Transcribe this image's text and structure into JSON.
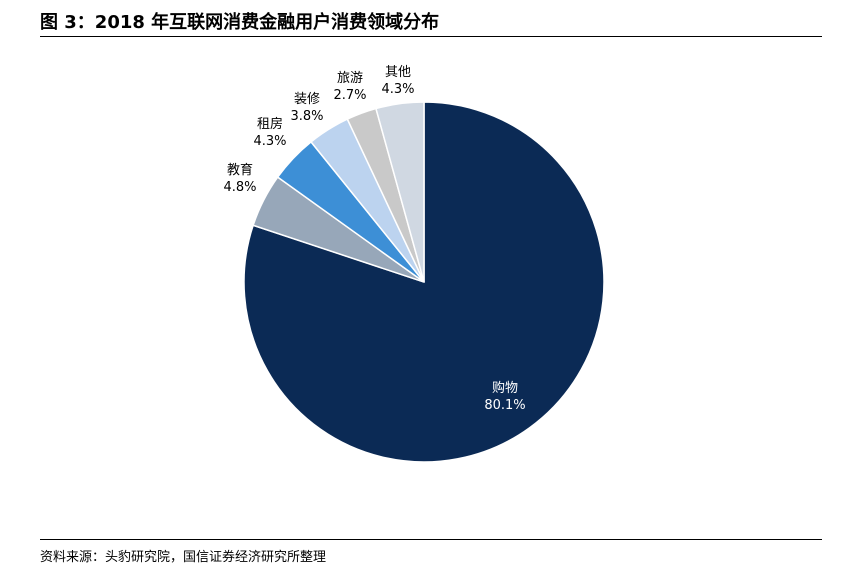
{
  "figure": {
    "title": "图 3：2018 年互联网消费金融用户消费领域分布",
    "source": "资料来源：头豹研究院，国信证券经济研究所整理"
  },
  "chart_data": {
    "type": "pie",
    "title": "",
    "legend": "none",
    "start": "12 o'clock",
    "direction": "clockwise",
    "slices": [
      {
        "label": "购物",
        "value": 80.1,
        "value_label": "80.1%",
        "color": "#0b2a55",
        "label_color": "#ffffff"
      },
      {
        "label": "教育",
        "value": 4.8,
        "value_label": "4.8%",
        "color": "#97a7b9",
        "label_color": "#000000"
      },
      {
        "label": "租房",
        "value": 4.3,
        "value_label": "4.3%",
        "color": "#3d8fd6",
        "label_color": "#000000"
      },
      {
        "label": "装修",
        "value": 3.8,
        "value_label": "3.8%",
        "color": "#bcd3ef",
        "label_color": "#000000"
      },
      {
        "label": "旅游",
        "value": 2.7,
        "value_label": "2.7%",
        "color": "#c9c9c9",
        "label_color": "#000000"
      },
      {
        "label": "其他",
        "value": 4.3,
        "value_label": "4.3%",
        "color": "#d0d8e2",
        "label_color": "#000000"
      }
    ]
  }
}
